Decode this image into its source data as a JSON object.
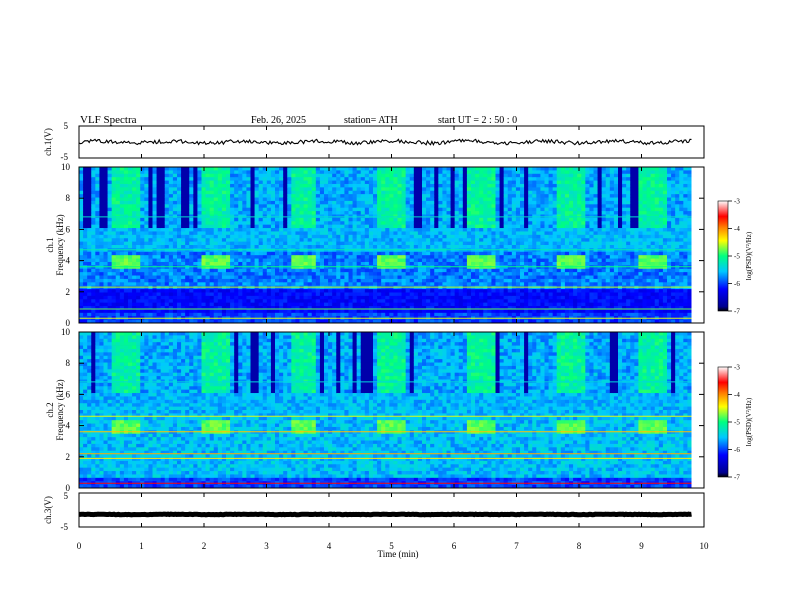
{
  "header": {
    "title": "VLF  Spectra",
    "date": "Feb. 26, 2025",
    "station": "station= ATH",
    "start": "start  UT  =   2  : 50 : 0"
  },
  "chart_data": [
    {
      "type": "line",
      "panel": "ch1-waveform",
      "ylabel": "ch.1(V)",
      "ylim": [
        -5,
        5
      ],
      "y_ticks": [
        "5",
        "-5"
      ],
      "x_range_min": [
        0,
        9.8
      ],
      "approx_level_v": 0.0,
      "line_color": "#000000"
    },
    {
      "type": "heatmap",
      "panel": "ch1-spectrogram",
      "ylabel": "ch.1\nFrequency  (kHz)",
      "ylim": [
        0,
        10
      ],
      "y_ticks": [
        "0",
        "2",
        "4",
        "6",
        "8",
        "10"
      ],
      "x_range_min": [
        0,
        9.8
      ],
      "colorbar": {
        "label": "log(PSD)(V²/Hz)",
        "range": [
          -7,
          -3
        ],
        "ticks": [
          "-3",
          "-4",
          "-5",
          "-6",
          "-7"
        ]
      },
      "pulse_centers_min": [
        0.75,
        2.2,
        3.6,
        5.0,
        6.45,
        7.85,
        9.2
      ],
      "pulse_band_khz": [
        3.5,
        4.3
      ]
    },
    {
      "type": "heatmap",
      "panel": "ch2-spectrogram",
      "ylabel": "ch.2\nFrequency  (kHz)",
      "ylim": [
        0,
        10
      ],
      "y_ticks": [
        "0",
        "2",
        "4",
        "6",
        "8",
        "10"
      ],
      "x_range_min": [
        0,
        9.8
      ],
      "colorbar": {
        "label": "log(PSD)(V²/Hz)",
        "range": [
          -7,
          -3
        ],
        "ticks": [
          "-3",
          "-4",
          "-5",
          "-6",
          "-7"
        ]
      },
      "pulse_centers_min": [
        0.75,
        2.2,
        3.6,
        5.0,
        6.45,
        7.85,
        9.2
      ],
      "pulse_band_khz": [
        3.5,
        4.3
      ]
    },
    {
      "type": "line",
      "panel": "ch3-waveform",
      "ylabel": "ch.3(V)",
      "ylim": [
        -5,
        5
      ],
      "y_ticks": [
        "5",
        "-5"
      ],
      "x_range_min": [
        0,
        9.8
      ],
      "approx_level_v": -1.3,
      "line_color": "#000000"
    }
  ],
  "xaxis": {
    "label": "Time  (min)",
    "range": [
      0,
      10
    ],
    "ticks": [
      "0",
      "1",
      "2",
      "3",
      "4",
      "5",
      "6",
      "7",
      "8",
      "9",
      "10"
    ]
  }
}
